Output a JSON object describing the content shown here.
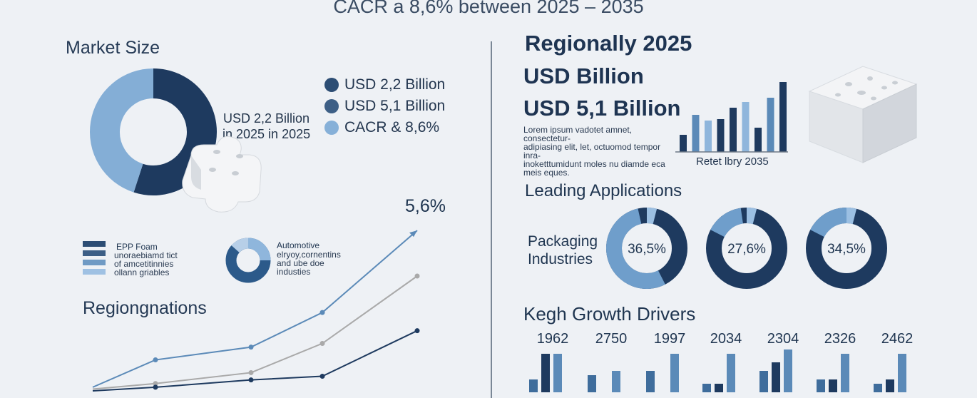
{
  "header": {
    "subtitle": "CACR a 8,6% between 2025 – 2035"
  },
  "market": {
    "title": "Market Size",
    "donut_label_line1": "USD 2,2 Billion",
    "donut_label_line2": "in 2025 in 2025",
    "legend": [
      {
        "label": "USD 2,2 Billion",
        "color": "#2c4d74"
      },
      {
        "label": "USD 5,1 Billion",
        "color": "#3d5f86"
      },
      {
        "label": "CACR & 8,6%",
        "color": "#86b0d8"
      }
    ]
  },
  "mini_legend": {
    "title": "EPP Foam",
    "lines": [
      "unoraebiamd tict",
      "of amcetitinnies",
      "ollann griables"
    ],
    "swatch_colors": [
      "#2c4d74",
      "#3d5f86",
      "#6f9ac4",
      "#9fc1e3"
    ]
  },
  "automotive": {
    "title": "Automotive",
    "lines": [
      "elryoy,cornentins",
      "and ube doe",
      "industies"
    ]
  },
  "regional": {
    "title": "Regionally 2025",
    "line2": "USD  Billion",
    "line3": "USD 5,1 Billion",
    "lorem": [
      "Lorem ipsum vadotet amnet, consectetur-",
      "adipiasing elit, let, octuomod tempor inra-",
      "inoketttumidunt moles nu diamde eca",
      "meis eques."
    ],
    "bar_caption": "Retet lbry 2035"
  },
  "regions_section": {
    "title": "Regiongnations"
  },
  "growth_label": "5,6%",
  "applications": {
    "title": "Leading Applications",
    "label_line1": "Packaging",
    "label_line2": "Industries",
    "donuts": [
      {
        "value": "36,5%"
      },
      {
        "value": "27,6%"
      },
      {
        "value": "34,5%"
      }
    ]
  },
  "drivers": {
    "title": "Kegh Growth Drivers",
    "years": [
      "1962",
      "2750",
      "1997",
      "2034",
      "2304",
      "2326",
      "2462"
    ]
  },
  "colors": {
    "dark": "#1e3a5f",
    "mid": "#5b8ab8",
    "light": "#8fb6dc",
    "grey": "#a9a9a9"
  },
  "chart_data": [
    {
      "type": "pie",
      "title": "Market Size",
      "values": [
        55,
        45
      ],
      "colors": [
        "#1e3a5f",
        "#84aed6"
      ]
    },
    {
      "type": "line",
      "title": "Regiongnations",
      "series": [
        {
          "values": [
            0.2,
            1.7,
            2.4,
            4.3,
            8.8
          ]
        },
        {
          "values": [
            0.1,
            0.4,
            1.0,
            2.6,
            6.3
          ]
        },
        {
          "values": [
            0.0,
            0.2,
            0.6,
            0.8,
            3.3
          ]
        }
      ],
      "annotation": "5,6%"
    },
    {
      "type": "bar",
      "caption": "Retet lbry 2035",
      "values": [
        1.2,
        2.6,
        2.2,
        2.3,
        3.1,
        3.5,
        1.7,
        3.8,
        4.9
      ],
      "colors": [
        "#1e3a5f",
        "#5b8ab8",
        "#8fb6dc",
        "#1e3a5f",
        "#1e3a5f",
        "#8fb6dc",
        "#1e3a5f",
        "#5b8ab8",
        "#1e3a5f"
      ]
    },
    {
      "type": "pie",
      "values": [
        36.5,
        63.5
      ],
      "label": "36,5%"
    },
    {
      "type": "pie",
      "values": [
        27.6,
        72.4
      ],
      "label": "27,6%"
    },
    {
      "type": "pie",
      "values": [
        34.5,
        65.5
      ],
      "label": "34,5%"
    },
    {
      "type": "bar",
      "title": "Kegh Growth Drivers",
      "categories": [
        "1962",
        "2750",
        "1997",
        "2034",
        "2304",
        "2326",
        "2462"
      ],
      "groups": [
        [
          0.3,
          0.9,
          0.9
        ],
        [
          0.4,
          0.0,
          0.5
        ],
        [
          0.5,
          0.0,
          0.9
        ],
        [
          0.2,
          0.2,
          0.9
        ],
        [
          0.5,
          0.7,
          1.0
        ],
        [
          0.3,
          0.3,
          0.9
        ],
        [
          0.2,
          0.3,
          0.9
        ]
      ]
    }
  ]
}
